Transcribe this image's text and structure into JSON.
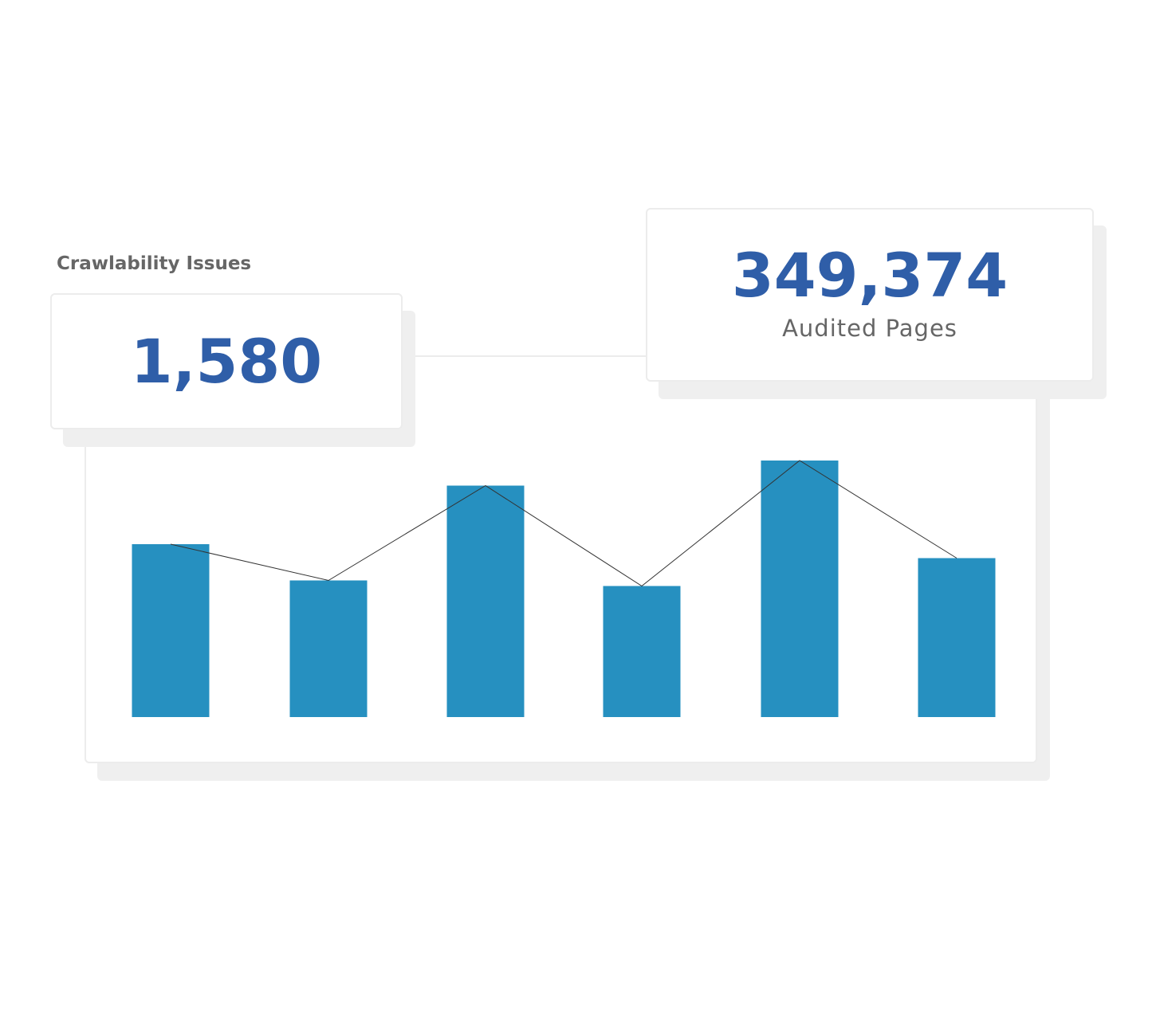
{
  "header": {
    "title": "Crawlability Issues"
  },
  "stats": [
    {
      "value": "1,580"
    },
    {
      "value": "349,374",
      "label": "Audited Pages"
    }
  ],
  "chart_data": {
    "type": "bar",
    "values": [
      62,
      49,
      83,
      47,
      92,
      57
    ],
    "color": "#2690c0",
    "ylim": [
      0,
      100
    ],
    "line": true,
    "line_color": "#333333"
  }
}
